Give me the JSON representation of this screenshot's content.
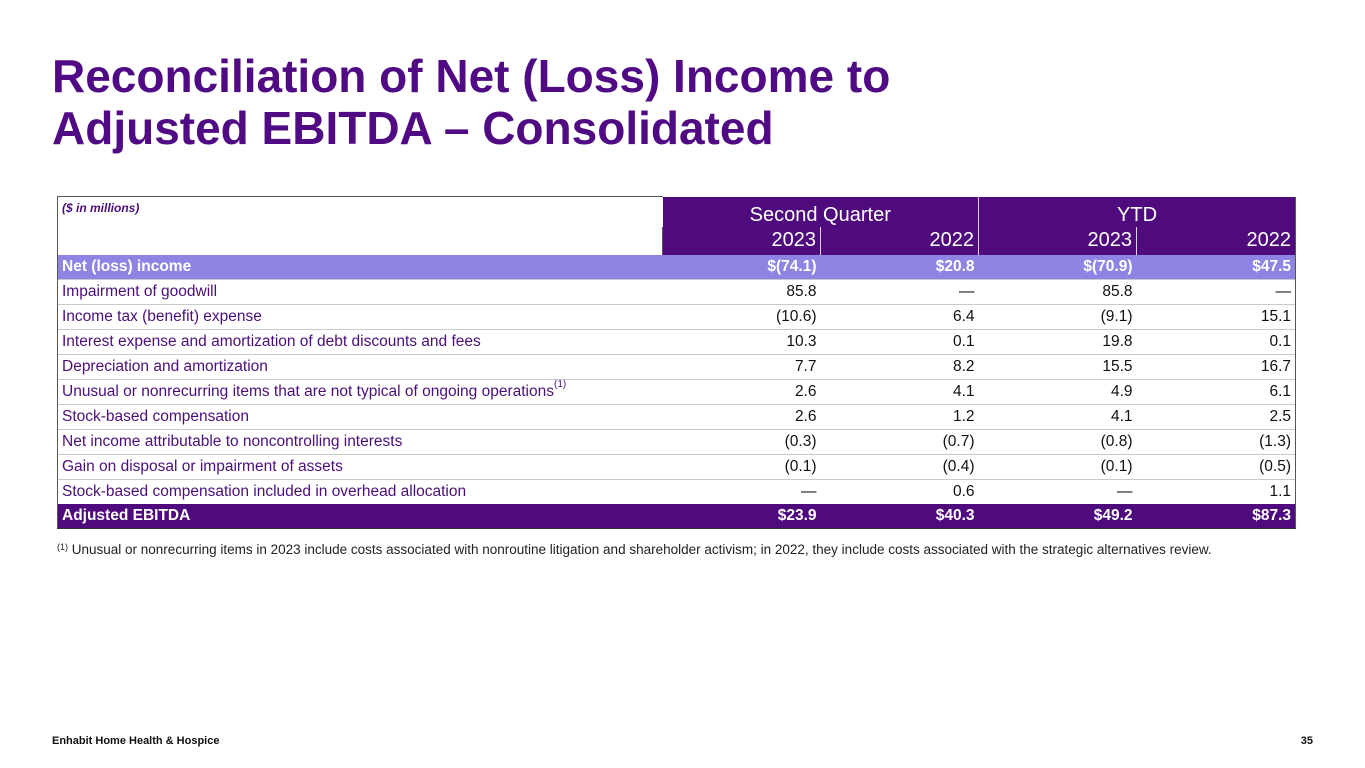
{
  "slide": {
    "title_line1": "Reconciliation of Net (Loss) Income to",
    "title_line2": "Adjusted EBITDA – Consolidated",
    "company": "Enhabit Home Health & Hospice",
    "page_number": "35"
  },
  "table": {
    "unit_label": "($ in millions)",
    "groups": [
      "Second Quarter",
      "YTD"
    ],
    "years": [
      "2023",
      "2022",
      "2023",
      "2022"
    ],
    "rows": [
      {
        "label": "Net (loss) income",
        "footnote": "",
        "values": [
          "$(74.1)",
          "$20.8",
          "$(70.9)",
          "$47.5"
        ]
      },
      {
        "label": "Impairment of goodwill",
        "footnote": "",
        "values": [
          "85.8",
          "—",
          "85.8",
          "—"
        ]
      },
      {
        "label": "Income tax (benefit) expense",
        "footnote": "",
        "values": [
          "(10.6)",
          "6.4",
          "(9.1)",
          "15.1"
        ]
      },
      {
        "label": "Interest expense and amortization of debt discounts and fees",
        "footnote": "",
        "values": [
          "10.3",
          "0.1",
          "19.8",
          "0.1"
        ]
      },
      {
        "label": "Depreciation and amortization",
        "footnote": "",
        "values": [
          "7.7",
          "8.2",
          "15.5",
          "16.7"
        ]
      },
      {
        "label": "Unusual or nonrecurring items that are not typical of ongoing operations",
        "footnote": "(1)",
        "values": [
          "2.6",
          "4.1",
          "4.9",
          "6.1"
        ]
      },
      {
        "label": "Stock-based compensation",
        "footnote": "",
        "values": [
          "2.6",
          "1.2",
          "4.1",
          "2.5"
        ]
      },
      {
        "label": "Net income attributable to noncontrolling interests",
        "footnote": "",
        "values": [
          "(0.3)",
          "(0.7)",
          "(0.8)",
          "(1.3)"
        ]
      },
      {
        "label": "Gain on disposal or impairment of assets",
        "footnote": "",
        "values": [
          "(0.1)",
          "(0.4)",
          "(0.1)",
          "(0.5)"
        ]
      },
      {
        "label": "Stock-based compensation included in overhead allocation",
        "footnote": "",
        "values": [
          "—",
          "0.6",
          "—",
          "1.1"
        ]
      },
      {
        "label": "Adjusted EBITDA",
        "footnote": "",
        "values": [
          "$23.9",
          "$40.3",
          "$49.2",
          "$87.3"
        ]
      }
    ]
  },
  "footnote": {
    "marker": "(1)",
    "text": " Unusual or nonrecurring items in 2023 include costs associated with nonroutine litigation and shareholder activism; in 2022, they include costs associated with the strategic alternatives review."
  },
  "colors": {
    "brand_purple": "#4f0a7e",
    "highlight_lavender": "#8e84e3"
  }
}
